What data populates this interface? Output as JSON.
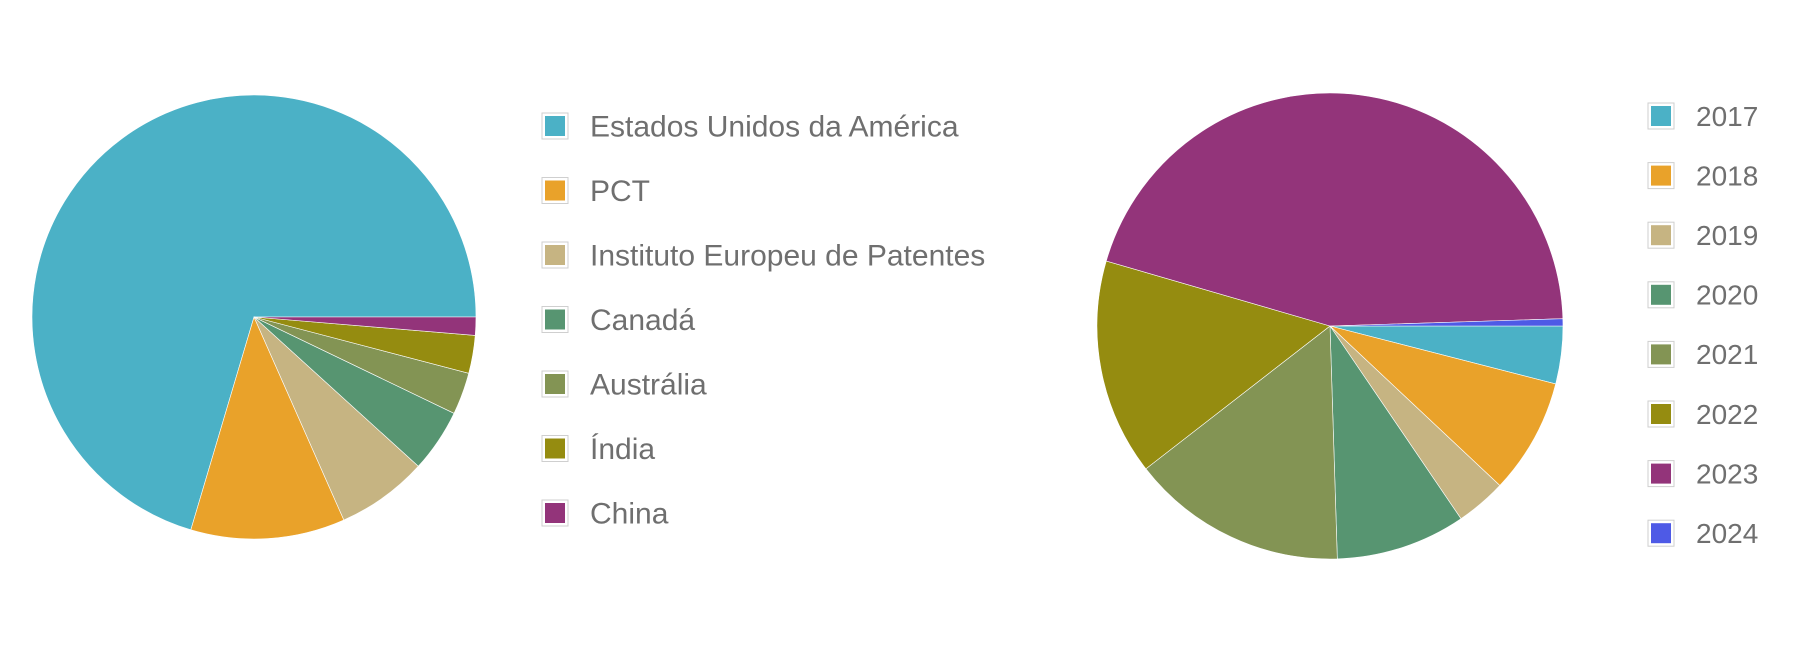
{
  "chart_data": [
    {
      "type": "pie",
      "categories": [
        "Estados Unidos da América",
        "PCT",
        "Instituto Europeu de Patentes",
        "Canadá",
        "Austrália",
        "Índia",
        "China"
      ],
      "values": [
        69,
        11,
        6.5,
        4.5,
        3,
        2.7,
        1.3
      ],
      "colors": [
        "#4bb1c6",
        "#e9a22a",
        "#c6b482",
        "#579571",
        "#839454",
        "#958c10",
        "#93347a"
      ],
      "legend_position": "right",
      "start_angle_deg": 0,
      "direction": "counterclockwise",
      "legend_order": "forward"
    },
    {
      "type": "pie",
      "categories": [
        "2017",
        "2018",
        "2019",
        "2020",
        "2021",
        "2022",
        "2023",
        "2024"
      ],
      "values": [
        4,
        8,
        3.5,
        9,
        15,
        15,
        45,
        0.5
      ],
      "colors": [
        "#4bb1c6",
        "#e9a22a",
        "#c6b482",
        "#579571",
        "#839454",
        "#958c10",
        "#93347a",
        "#4e5ae6"
      ],
      "legend_position": "right",
      "start_angle_deg": 0,
      "direction": "clockwise",
      "legend_order": "forward"
    }
  ]
}
